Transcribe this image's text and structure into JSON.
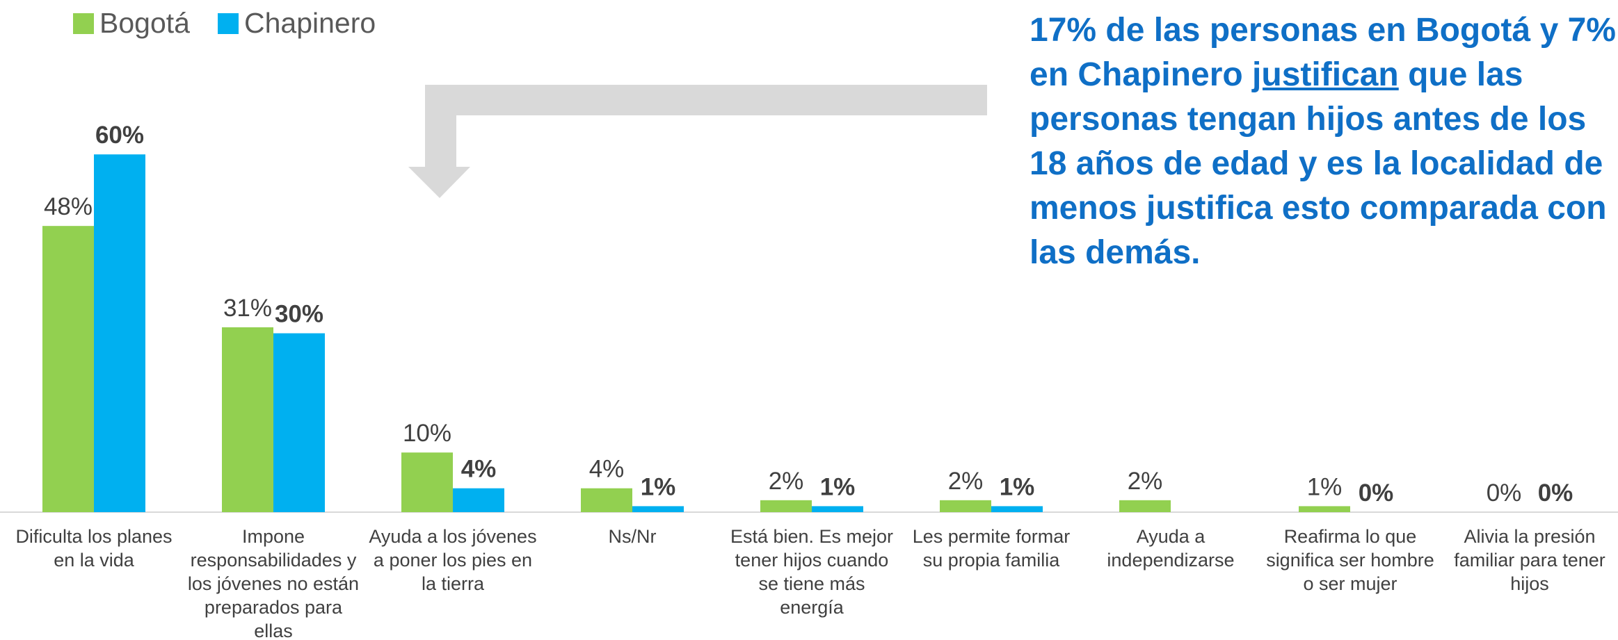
{
  "chart_data": {
    "type": "bar",
    "categories": [
      "Dificulta los planes en la vida",
      "Impone responsabilidades y los jóvenes no están preparados para ellas",
      "Ayuda a los jóvenes a poner los pies en la tierra",
      "Ns/Nr",
      "Está bien. Es mejor tener hijos cuando se tiene más energía",
      "Les permite formar su propia familia",
      "Ayuda a independizarse",
      "Reafirma lo que significa ser hombre o ser mujer",
      "Alivia la presión familiar para tener hijos"
    ],
    "series": [
      {
        "name": "Bogotá",
        "color": "#92d050",
        "values": [
          48,
          31,
          10,
          4,
          2,
          2,
          2,
          1,
          0
        ],
        "value_labels": [
          "48%",
          "31%",
          "10%",
          "4%",
          "2%",
          "2%",
          "2%",
          "1%",
          "0%"
        ]
      },
      {
        "name": "Chapinero",
        "color": "#00b0f0",
        "values": [
          60,
          30,
          4,
          1,
          1,
          1,
          null,
          0,
          0
        ],
        "value_labels": [
          "60%",
          "30%",
          "4%",
          "1%",
          "1%",
          "1%",
          null,
          "0%",
          "0%"
        ]
      }
    ],
    "legend": "top-left",
    "annotation": [
      "17% de las personas en Bogotá y 7% en Chapinero ",
      "justifican",
      " que las personas tengan hijos antes de los 18 años de edad y es la localidad de menos justifica esto comparada con las demás."
    ]
  }
}
